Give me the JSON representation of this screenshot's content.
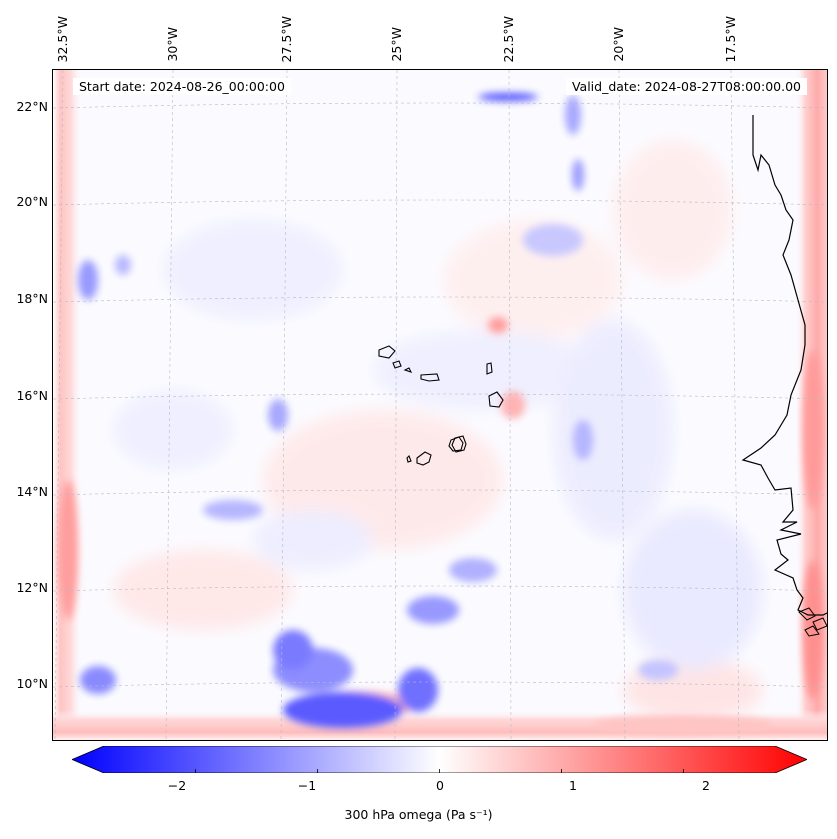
{
  "map": {
    "start_text": "Start date: 2024-08-26_00:00:00",
    "valid_text": "Valid_date: 2024-08-27T08:00:00.00",
    "lon_labels": [
      "32.5°W",
      "30°W",
      "27.5°W",
      "25°W",
      "22.5°W",
      "20°W",
      "17.5°W"
    ],
    "lat_labels": [
      "22°N",
      "20°N",
      "18°N",
      "16°N",
      "14°N",
      "12°N",
      "10°N"
    ]
  },
  "colorbar": {
    "min": -2.75,
    "max": 2.75,
    "ticks": [
      "−2",
      "−1",
      "0",
      "1",
      "2"
    ],
    "tick_values": [
      -2,
      -1,
      0,
      1,
      2
    ],
    "label": "300 hPa omega (Pa s⁻¹)",
    "colors": {
      "negative": "#0000ff",
      "zero": "#ffffff",
      "positive": "#ff0000"
    }
  }
}
